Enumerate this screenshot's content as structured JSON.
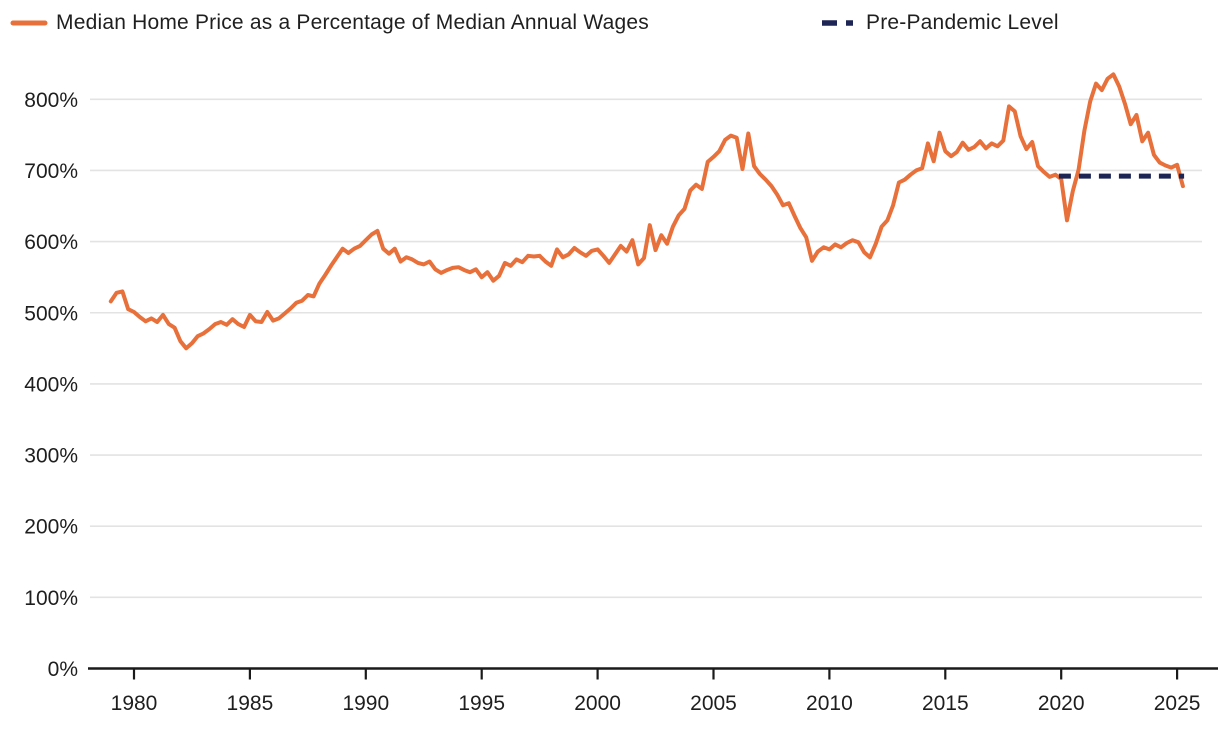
{
  "legend": {
    "series1_label": "Median Home Price as a Percentage of Median Annual Wages",
    "series2_label": "Pre-Pandemic Level"
  },
  "colors": {
    "home_price_line": "#E8703A",
    "pre_pandemic_line": "#1C2553",
    "gridline": "#E3E3E3",
    "axis": "#1A1A1A",
    "tick_text": "#1E1E1E"
  },
  "chart_data": {
    "type": "line",
    "title": "",
    "xlabel": "",
    "ylabel": "",
    "grid": true,
    "legend_position": "top",
    "xlim": [
      1978.9,
      2026.8
    ],
    "ylim": [
      0,
      860
    ],
    "x_ticks": [
      1980,
      1985,
      1990,
      1995,
      2000,
      2005,
      2010,
      2015,
      2020,
      2025
    ],
    "y_ticks": [
      {
        "value": 0,
        "label": "0%"
      },
      {
        "value": 100,
        "label": "100%"
      },
      {
        "value": 200,
        "label": "200%"
      },
      {
        "value": 300,
        "label": "300%"
      },
      {
        "value": 400,
        "label": "400%"
      },
      {
        "value": 500,
        "label": "500%"
      },
      {
        "value": 600,
        "label": "600%"
      },
      {
        "value": 700,
        "label": "700%"
      },
      {
        "value": 800,
        "label": "800%"
      }
    ],
    "series": [
      {
        "name": "Median Home Price as a Percentage of Median Annual Wages",
        "color": "#E8703A",
        "style": "solid",
        "points": [
          [
            1979.0,
            516
          ],
          [
            1979.25,
            528
          ],
          [
            1979.5,
            530
          ],
          [
            1979.75,
            505
          ],
          [
            1980.0,
            501
          ],
          [
            1980.25,
            494
          ],
          [
            1980.5,
            488
          ],
          [
            1980.75,
            492
          ],
          [
            1981.0,
            487
          ],
          [
            1981.25,
            497
          ],
          [
            1981.5,
            484
          ],
          [
            1981.75,
            479
          ],
          [
            1982.0,
            460
          ],
          [
            1982.25,
            450
          ],
          [
            1982.5,
            457
          ],
          [
            1982.75,
            467
          ],
          [
            1983.0,
            471
          ],
          [
            1983.25,
            477
          ],
          [
            1983.5,
            484
          ],
          [
            1983.75,
            487
          ],
          [
            1984.0,
            483
          ],
          [
            1984.25,
            491
          ],
          [
            1984.5,
            484
          ],
          [
            1984.75,
            480
          ],
          [
            1985.0,
            497
          ],
          [
            1985.25,
            488
          ],
          [
            1985.5,
            487
          ],
          [
            1985.75,
            501
          ],
          [
            1986.0,
            489
          ],
          [
            1986.25,
            492
          ],
          [
            1986.5,
            499
          ],
          [
            1986.75,
            506
          ],
          [
            1987.0,
            514
          ],
          [
            1987.25,
            517
          ],
          [
            1987.5,
            525
          ],
          [
            1987.75,
            523
          ],
          [
            1988.0,
            541
          ],
          [
            1988.25,
            553
          ],
          [
            1988.5,
            566
          ],
          [
            1988.75,
            578
          ],
          [
            1989.0,
            590
          ],
          [
            1989.25,
            584
          ],
          [
            1989.5,
            590
          ],
          [
            1989.75,
            594
          ],
          [
            1990.0,
            602
          ],
          [
            1990.25,
            610
          ],
          [
            1990.5,
            615
          ],
          [
            1990.75,
            590
          ],
          [
            1991.0,
            583
          ],
          [
            1991.25,
            590
          ],
          [
            1991.5,
            572
          ],
          [
            1991.75,
            578
          ],
          [
            1992.0,
            575
          ],
          [
            1992.25,
            570
          ],
          [
            1992.5,
            568
          ],
          [
            1992.75,
            572
          ],
          [
            1993.0,
            561
          ],
          [
            1993.25,
            556
          ],
          [
            1993.5,
            560
          ],
          [
            1993.75,
            563
          ],
          [
            1994.0,
            564
          ],
          [
            1994.25,
            560
          ],
          [
            1994.5,
            557
          ],
          [
            1994.75,
            561
          ],
          [
            1995.0,
            550
          ],
          [
            1995.25,
            557
          ],
          [
            1995.5,
            545
          ],
          [
            1995.75,
            552
          ],
          [
            1996.0,
            570
          ],
          [
            1996.25,
            566
          ],
          [
            1996.5,
            575
          ],
          [
            1996.75,
            571
          ],
          [
            1997.0,
            580
          ],
          [
            1997.25,
            579
          ],
          [
            1997.5,
            580
          ],
          [
            1997.75,
            572
          ],
          [
            1998.0,
            566
          ],
          [
            1998.25,
            589
          ],
          [
            1998.5,
            578
          ],
          [
            1998.75,
            582
          ],
          [
            1999.0,
            591
          ],
          [
            1999.25,
            585
          ],
          [
            1999.5,
            580
          ],
          [
            1999.75,
            587
          ],
          [
            2000.0,
            589
          ],
          [
            2000.25,
            580
          ],
          [
            2000.5,
            570
          ],
          [
            2000.75,
            582
          ],
          [
            2001.0,
            594
          ],
          [
            2001.25,
            586
          ],
          [
            2001.5,
            602
          ],
          [
            2001.75,
            568
          ],
          [
            2002.0,
            577
          ],
          [
            2002.25,
            623
          ],
          [
            2002.5,
            588
          ],
          [
            2002.75,
            609
          ],
          [
            2003.0,
            597
          ],
          [
            2003.25,
            621
          ],
          [
            2003.5,
            637
          ],
          [
            2003.75,
            646
          ],
          [
            2004.0,
            672
          ],
          [
            2004.25,
            680
          ],
          [
            2004.5,
            674
          ],
          [
            2004.75,
            712
          ],
          [
            2005.0,
            719
          ],
          [
            2005.25,
            727
          ],
          [
            2005.5,
            743
          ],
          [
            2005.75,
            749
          ],
          [
            2006.0,
            746
          ],
          [
            2006.25,
            702
          ],
          [
            2006.5,
            752
          ],
          [
            2006.75,
            706
          ],
          [
            2007.0,
            695
          ],
          [
            2007.25,
            687
          ],
          [
            2007.5,
            678
          ],
          [
            2007.75,
            666
          ],
          [
            2008.0,
            651
          ],
          [
            2008.25,
            654
          ],
          [
            2008.5,
            636
          ],
          [
            2008.75,
            619
          ],
          [
            2009.0,
            606
          ],
          [
            2009.25,
            573
          ],
          [
            2009.5,
            586
          ],
          [
            2009.75,
            592
          ],
          [
            2010.0,
            589
          ],
          [
            2010.25,
            596
          ],
          [
            2010.5,
            592
          ],
          [
            2010.75,
            598
          ],
          [
            2011.0,
            602
          ],
          [
            2011.25,
            599
          ],
          [
            2011.5,
            585
          ],
          [
            2011.75,
            578
          ],
          [
            2012.0,
            597
          ],
          [
            2012.25,
            621
          ],
          [
            2012.5,
            630
          ],
          [
            2012.75,
            651
          ],
          [
            2013.0,
            683
          ],
          [
            2013.25,
            687
          ],
          [
            2013.5,
            694
          ],
          [
            2013.75,
            700
          ],
          [
            2014.0,
            703
          ],
          [
            2014.25,
            738
          ],
          [
            2014.5,
            713
          ],
          [
            2014.75,
            753
          ],
          [
            2015.0,
            727
          ],
          [
            2015.25,
            720
          ],
          [
            2015.5,
            726
          ],
          [
            2015.75,
            739
          ],
          [
            2016.0,
            729
          ],
          [
            2016.25,
            733
          ],
          [
            2016.5,
            741
          ],
          [
            2016.75,
            731
          ],
          [
            2017.0,
            738
          ],
          [
            2017.25,
            734
          ],
          [
            2017.5,
            742
          ],
          [
            2017.75,
            790
          ],
          [
            2018.0,
            783
          ],
          [
            2018.25,
            748
          ],
          [
            2018.5,
            730
          ],
          [
            2018.75,
            740
          ],
          [
            2019.0,
            706
          ],
          [
            2019.25,
            698
          ],
          [
            2019.5,
            691
          ],
          [
            2019.75,
            694
          ],
          [
            2020.0,
            688
          ],
          [
            2020.25,
            630
          ],
          [
            2020.5,
            671
          ],
          [
            2020.75,
            701
          ],
          [
            2021.0,
            756
          ],
          [
            2021.25,
            797
          ],
          [
            2021.5,
            822
          ],
          [
            2021.75,
            813
          ],
          [
            2022.0,
            829
          ],
          [
            2022.25,
            835
          ],
          [
            2022.5,
            818
          ],
          [
            2022.75,
            794
          ],
          [
            2023.0,
            765
          ],
          [
            2023.25,
            778
          ],
          [
            2023.5,
            741
          ],
          [
            2023.75,
            753
          ],
          [
            2024.0,
            722
          ],
          [
            2024.25,
            711
          ],
          [
            2024.5,
            707
          ],
          [
            2024.75,
            704
          ],
          [
            2025.0,
            708
          ],
          [
            2025.25,
            678
          ]
        ]
      },
      {
        "name": "Pre-Pandemic Level",
        "color": "#1C2553",
        "style": "dashed",
        "points": [
          [
            2019.9,
            692
          ],
          [
            2025.3,
            692
          ]
        ]
      }
    ]
  }
}
